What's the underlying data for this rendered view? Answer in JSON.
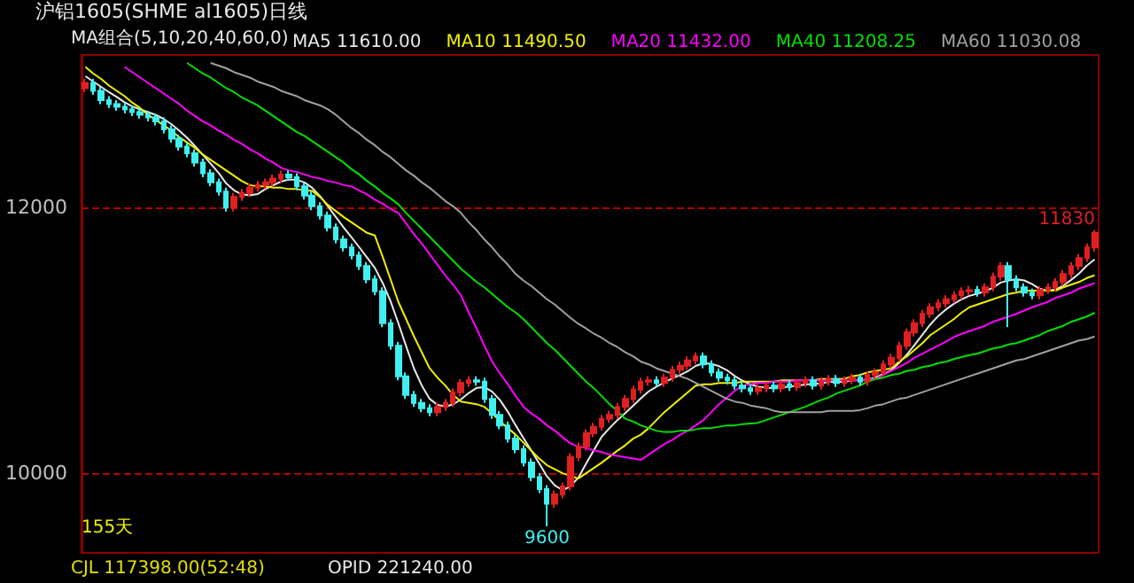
{
  "chart_data": {
    "type": "candlestick",
    "title": "沪铝1605(SHME al1605)日线",
    "annotations": [
      "MA组合(5,10,20,40,60,0)",
      "11830",
      {
        "text": "9600",
        "y": 9600
      },
      "155天",
      "CJL 117398.00(52:48)",
      "OPID 221240.00"
    ],
    "categories": [
      null,
      null,
      null,
      null,
      null,
      null,
      null,
      null,
      null,
      null,
      null,
      null,
      null,
      null,
      null,
      null,
      null,
      null,
      null,
      null,
      null,
      null,
      null,
      null,
      null,
      null,
      null,
      null,
      null,
      null,
      null,
      null,
      null,
      null,
      null,
      null,
      null,
      null,
      null,
      null,
      null,
      null,
      null,
      null,
      null,
      null,
      null,
      null,
      null,
      null,
      null,
      null,
      null,
      null,
      null,
      null,
      null,
      null,
      null,
      null,
      null,
      null,
      null,
      null,
      null,
      null,
      null,
      null,
      null,
      null,
      null,
      null,
      null,
      null,
      null,
      null,
      null,
      null,
      null,
      null,
      null,
      null,
      null,
      null,
      null,
      null,
      null,
      null,
      null,
      null,
      null,
      null,
      null,
      null,
      null,
      null,
      null,
      null,
      null,
      null,
      null,
      null,
      null,
      null,
      null,
      null,
      null,
      null,
      null,
      null,
      null,
      null,
      null,
      null,
      null,
      null,
      null,
      null,
      null,
      null,
      null,
      null,
      null,
      null,
      null,
      null,
      null,
      null,
      null,
      null
    ],
    "ohlc": [
      [
        12900,
        12970,
        12870,
        12940
      ],
      [
        12940,
        12970,
        12850,
        12880
      ],
      [
        12880,
        12910,
        12780,
        12810
      ],
      [
        12810,
        12840,
        12750,
        12780
      ],
      [
        12780,
        12810,
        12730,
        12760
      ],
      [
        12760,
        12790,
        12710,
        12740
      ],
      [
        12740,
        12770,
        12690,
        12720
      ],
      [
        12720,
        12750,
        12670,
        12700
      ],
      [
        12700,
        12730,
        12650,
        12680
      ],
      [
        12680,
        12710,
        12620,
        12650
      ],
      [
        12650,
        12680,
        12560,
        12590
      ],
      [
        12590,
        12620,
        12490,
        12520
      ],
      [
        12520,
        12550,
        12430,
        12460
      ],
      [
        12460,
        12490,
        12380,
        12410
      ],
      [
        12410,
        12440,
        12310,
        12340
      ],
      [
        12340,
        12370,
        12230,
        12260
      ],
      [
        12260,
        12290,
        12160,
        12190
      ],
      [
        12190,
        12220,
        12090,
        12120
      ],
      [
        12120,
        12150,
        11970,
        12000
      ],
      [
        12000,
        12110,
        11970,
        12080
      ],
      [
        12080,
        12140,
        12050,
        12110
      ],
      [
        12110,
        12180,
        12080,
        12150
      ],
      [
        12150,
        12200,
        12120,
        12170
      ],
      [
        12170,
        12220,
        12140,
        12190
      ],
      [
        12190,
        12250,
        12160,
        12220
      ],
      [
        12220,
        12280,
        12190,
        12250
      ],
      [
        12250,
        12280,
        12200,
        12230
      ],
      [
        12230,
        12260,
        12130,
        12160
      ],
      [
        12160,
        12190,
        12060,
        12090
      ],
      [
        12090,
        12120,
        11980,
        12010
      ],
      [
        12010,
        12040,
        11910,
        11940
      ],
      [
        11940,
        11970,
        11820,
        11850
      ],
      [
        11850,
        11880,
        11730,
        11760
      ],
      [
        11760,
        11790,
        11670,
        11700
      ],
      [
        11700,
        11730,
        11610,
        11640
      ],
      [
        11640,
        11670,
        11530,
        11560
      ],
      [
        11560,
        11590,
        11430,
        11460
      ],
      [
        11460,
        11490,
        11340,
        11370
      ],
      [
        11370,
        11400,
        11100,
        11130
      ],
      [
        11130,
        11160,
        10930,
        10960
      ],
      [
        10960,
        10990,
        10700,
        10730
      ],
      [
        10730,
        10760,
        10560,
        10590
      ],
      [
        10590,
        10620,
        10500,
        10530
      ],
      [
        10530,
        10560,
        10460,
        10490
      ],
      [
        10490,
        10520,
        10430,
        10460
      ],
      [
        10460,
        10530,
        10430,
        10500
      ],
      [
        10500,
        10560,
        10470,
        10530
      ],
      [
        10530,
        10640,
        10500,
        10610
      ],
      [
        10610,
        10710,
        10580,
        10680
      ],
      [
        10680,
        10730,
        10650,
        10700
      ],
      [
        10700,
        10730,
        10660,
        10690
      ],
      [
        10690,
        10720,
        10530,
        10560
      ],
      [
        10560,
        10590,
        10410,
        10440
      ],
      [
        10440,
        10470,
        10330,
        10360
      ],
      [
        10360,
        10390,
        10230,
        10260
      ],
      [
        10260,
        10290,
        10150,
        10180
      ],
      [
        10180,
        10210,
        10050,
        10080
      ],
      [
        10080,
        10110,
        9940,
        9970
      ],
      [
        9970,
        10000,
        9850,
        9880
      ],
      [
        9880,
        9910,
        9600,
        9770
      ],
      [
        9770,
        9870,
        9740,
        9840
      ],
      [
        9840,
        9930,
        9810,
        9900
      ],
      [
        9900,
        10150,
        9870,
        10120
      ],
      [
        10120,
        10230,
        10090,
        10200
      ],
      [
        10200,
        10330,
        10170,
        10300
      ],
      [
        10300,
        10380,
        10270,
        10350
      ],
      [
        10350,
        10440,
        10320,
        10410
      ],
      [
        10410,
        10470,
        10380,
        10440
      ],
      [
        10440,
        10530,
        10410,
        10500
      ],
      [
        10500,
        10590,
        10470,
        10560
      ],
      [
        10560,
        10660,
        10530,
        10630
      ],
      [
        10630,
        10720,
        10600,
        10690
      ],
      [
        10690,
        10730,
        10660,
        10700
      ],
      [
        10700,
        10730,
        10650,
        10680
      ],
      [
        10680,
        10750,
        10650,
        10720
      ],
      [
        10720,
        10810,
        10690,
        10780
      ],
      [
        10780,
        10840,
        10750,
        10810
      ],
      [
        10810,
        10880,
        10780,
        10850
      ],
      [
        10850,
        10910,
        10820,
        10880
      ],
      [
        10880,
        10910,
        10790,
        10820
      ],
      [
        10820,
        10850,
        10730,
        10760
      ],
      [
        10760,
        10790,
        10690,
        10720
      ],
      [
        10720,
        10750,
        10670,
        10700
      ],
      [
        10700,
        10730,
        10630,
        10660
      ],
      [
        10660,
        10690,
        10610,
        10640
      ],
      [
        10640,
        10670,
        10590,
        10620
      ],
      [
        10620,
        10670,
        10590,
        10640
      ],
      [
        10640,
        10690,
        10610,
        10660
      ],
      [
        10660,
        10690,
        10610,
        10640
      ],
      [
        10640,
        10700,
        10610,
        10670
      ],
      [
        10670,
        10700,
        10620,
        10650
      ],
      [
        10650,
        10710,
        10620,
        10680
      ],
      [
        10680,
        10730,
        10650,
        10700
      ],
      [
        10700,
        10730,
        10630,
        10660
      ],
      [
        10660,
        10720,
        10630,
        10690
      ],
      [
        10690,
        10740,
        10660,
        10710
      ],
      [
        10710,
        10740,
        10650,
        10680
      ],
      [
        10680,
        10730,
        10650,
        10700
      ],
      [
        10700,
        10750,
        10670,
        10720
      ],
      [
        10720,
        10750,
        10660,
        10690
      ],
      [
        10690,
        10770,
        10660,
        10740
      ],
      [
        10740,
        10790,
        10710,
        10760
      ],
      [
        10760,
        10850,
        10730,
        10820
      ],
      [
        10820,
        10900,
        10790,
        10870
      ],
      [
        10870,
        10990,
        10840,
        10960
      ],
      [
        10960,
        11090,
        10930,
        11060
      ],
      [
        11060,
        11160,
        11030,
        11130
      ],
      [
        11130,
        11230,
        11100,
        11200
      ],
      [
        11200,
        11280,
        11170,
        11250
      ],
      [
        11250,
        11310,
        11220,
        11280
      ],
      [
        11280,
        11340,
        11250,
        11310
      ],
      [
        11310,
        11370,
        11280,
        11340
      ],
      [
        11340,
        11400,
        11310,
        11370
      ],
      [
        11370,
        11410,
        11340,
        11380
      ],
      [
        11380,
        11410,
        11330,
        11360
      ],
      [
        11360,
        11430,
        11330,
        11400
      ],
      [
        11400,
        11510,
        11370,
        11480
      ],
      [
        11480,
        11590,
        11450,
        11560
      ],
      [
        11560,
        11590,
        11100,
        11460
      ],
      [
        11460,
        11490,
        11370,
        11400
      ],
      [
        11400,
        11430,
        11330,
        11360
      ],
      [
        11360,
        11390,
        11310,
        11340
      ],
      [
        11340,
        11410,
        11310,
        11380
      ],
      [
        11380,
        11430,
        11350,
        11400
      ],
      [
        11400,
        11470,
        11370,
        11440
      ],
      [
        11440,
        11530,
        11410,
        11500
      ],
      [
        11500,
        11590,
        11470,
        11560
      ],
      [
        11560,
        11650,
        11530,
        11620
      ],
      [
        11620,
        11730,
        11590,
        11700
      ],
      [
        11700,
        11830,
        11670,
        11810
      ]
    ],
    "colors": [
      "#e02020",
      "#40f0f0",
      "#40f0f0",
      "#40f0f0",
      "#40f0f0",
      "#40f0f0",
      "#40f0f0",
      "#40f0f0",
      "#40f0f0",
      "#40f0f0",
      "#40f0f0",
      "#40f0f0",
      "#40f0f0",
      "#40f0f0",
      "#40f0f0",
      "#40f0f0",
      "#40f0f0",
      "#40f0f0",
      "#40f0f0",
      "#e02020",
      "#e02020",
      "#e02020",
      "#e02020",
      "#e02020",
      "#e02020",
      "#e02020",
      "#40f0f0",
      "#40f0f0",
      "#40f0f0",
      "#40f0f0",
      "#40f0f0",
      "#40f0f0",
      "#40f0f0",
      "#40f0f0",
      "#40f0f0",
      "#40f0f0",
      "#40f0f0",
      "#40f0f0",
      "#40f0f0",
      "#40f0f0",
      "#40f0f0",
      "#40f0f0",
      "#40f0f0",
      "#40f0f0",
      "#40f0f0",
      "#e02020",
      "#e02020",
      "#e02020",
      "#e02020",
      "#e02020",
      "#40f0f0",
      "#40f0f0",
      "#40f0f0",
      "#40f0f0",
      "#40f0f0",
      "#40f0f0",
      "#40f0f0",
      "#40f0f0",
      "#40f0f0",
      "#40f0f0",
      "#e02020",
      "#e02020",
      "#e02020",
      "#e02020",
      "#e02020",
      "#e02020",
      "#e02020",
      "#e02020",
      "#e02020",
      "#e02020",
      "#e02020",
      "#e02020",
      "#e02020",
      "#40f0f0",
      "#e02020",
      "#e02020",
      "#e02020",
      "#e02020",
      "#e02020",
      "#40f0f0",
      "#40f0f0",
      "#40f0f0",
      "#40f0f0",
      "#40f0f0",
      "#40f0f0",
      "#40f0f0",
      "#e02020",
      "#e02020",
      "#40f0f0",
      "#e02020",
      "#40f0f0",
      "#e02020",
      "#e02020",
      "#40f0f0",
      "#e02020",
      "#e02020",
      "#40f0f0",
      "#e02020",
      "#e02020",
      "#40f0f0",
      "#e02020",
      "#e02020",
      "#e02020",
      "#e02020",
      "#e02020",
      "#e02020",
      "#e02020",
      "#e02020",
      "#e02020",
      "#e02020",
      "#e02020",
      "#e02020",
      "#e02020",
      "#e02020",
      "#40f0f0",
      "#e02020",
      "#e02020",
      "#e02020",
      "#40f0f0",
      "#40f0f0",
      "#40f0f0",
      "#40f0f0",
      "#e02020",
      "#e02020",
      "#e02020",
      "#e02020",
      "#e02020",
      "#e02020",
      "#e02020",
      "#e02020"
    ],
    "series": [
      {
        "name": "MA5 11610.00",
        "type": "line",
        "color": "#e8e8e8",
        "values": [
          12990,
          12950,
          12910,
          12870,
          12834,
          12794,
          12762,
          12740,
          12720,
          12698,
          12668,
          12628,
          12580,
          12526,
          12464,
          12398,
          12332,
          12264,
          12182,
          12130,
          12100,
          12092,
          12102,
          12140,
          12168,
          12196,
          12212,
          12210,
          12190,
          12148,
          12086,
          12010,
          11930,
          11852,
          11778,
          11702,
          11624,
          11546,
          11432,
          11296,
          11130,
          10956,
          10788,
          10660,
          10560,
          10514,
          10502,
          10518,
          10556,
          10604,
          10642,
          10648,
          10614,
          10550,
          10462,
          10360,
          10264,
          10170,
          10074,
          9976,
          9908,
          9872,
          9902,
          9966,
          10072,
          10174,
          10276,
          10340,
          10400,
          10452,
          10508,
          10564,
          10616,
          10652,
          10684,
          10714,
          10738,
          10768,
          10808,
          10828,
          10824,
          10806,
          10776,
          10732,
          10696,
          10668,
          10652,
          10644,
          10640,
          10646,
          10652,
          10660,
          10668,
          10672,
          10676,
          10688,
          10688,
          10688,
          10700,
          10700,
          10706,
          10722,
          10746,
          10776,
          10830,
          10894,
          10968,
          11044,
          11120,
          11184,
          11234,
          11276,
          11310,
          11336,
          11352,
          11370,
          11398,
          11436,
          11452,
          11460,
          11452,
          11424,
          11388,
          11376,
          11384,
          11412,
          11456,
          11504,
          11564,
          11610
        ]
      },
      {
        "name": "MA10 11490.50",
        "type": "line",
        "color": "#f0f000",
        "values": [
          13060,
          13010,
          12970,
          12920,
          12880,
          12840,
          12790,
          12750,
          12700,
          12660,
          12620,
          12580,
          12530,
          12490,
          12450,
          12400,
          12360,
          12320,
          12280,
          12240,
          12200,
          12170,
          12160,
          12160,
          12150,
          12150,
          12140,
          12140,
          12130,
          12125,
          12080,
          12020,
          11975,
          11930,
          11890,
          11850,
          11810,
          11790,
          11630,
          11460,
          11290,
          11160,
          11030,
          10910,
          10790,
          10720,
          10660,
          10590,
          10540,
          10530,
          10520,
          10500,
          10450,
          10390,
          10340,
          10290,
          10230,
          10170,
          10110,
          10060,
          10030,
          10000,
          9980,
          9960,
          10000,
          10040,
          10080,
          10125,
          10170,
          10210,
          10260,
          10290,
          10340,
          10400,
          10460,
          10510,
          10560,
          10610,
          10660,
          10670,
          10670,
          10680,
          10680,
          10680,
          10690,
          10690,
          10690,
          10690,
          10690,
          10700,
          10700,
          10700,
          10700,
          10700,
          10710,
          10710,
          10710,
          10710,
          10730,
          10740,
          10760,
          10770,
          10780,
          10790,
          10840,
          10880,
          10930,
          10980,
          11040,
          11080,
          11120,
          11160,
          11210,
          11250,
          11270,
          11290,
          11310,
          11330,
          11350,
          11360,
          11375,
          11375,
          11375,
          11375,
          11375,
          11400,
          11420,
          11440,
          11470,
          11490.5
        ]
      },
      {
        "name": "MA20 11432.00",
        "type": "line",
        "color": "#ff00ff",
        "values": [
          null,
          null,
          null,
          null,
          null,
          13060,
          13020,
          12980,
          12940,
          12900,
          12860,
          12820,
          12780,
          12730,
          12690,
          12650,
          12620,
          12580,
          12550,
          12510,
          12480,
          12440,
          12410,
          12370,
          12340,
          12300,
          12280,
          12270,
          12250,
          12230,
          12220,
          12200,
          12190,
          12170,
          12160,
          12130,
          12100,
          12060,
          12030,
          11990,
          11960,
          11880,
          11800,
          11730,
          11650,
          11570,
          11490,
          11420,
          11340,
          11210,
          11090,
          10960,
          10840,
          10750,
          10670,
          10580,
          10500,
          10450,
          10410,
          10360,
          10320,
          10270,
          10225,
          10200,
          10190,
          10170,
          10160,
          10140,
          10130,
          10120,
          10110,
          10100,
          10140,
          10180,
          10220,
          10250,
          10290,
          10320,
          10360,
          10400,
          10460,
          10520,
          10570,
          10620,
          10660,
          10670,
          10680,
          10680,
          10690,
          10690,
          10690,
          10700,
          10700,
          10700,
          10700,
          10700,
          10700,
          10700,
          10700,
          10700,
          10710,
          10710,
          10740,
          10770,
          10800,
          10830,
          10870,
          10900,
          10930,
          10960,
          10990,
          11025,
          11050,
          11070,
          11090,
          11110,
          11140,
          11160,
          11180,
          11200,
          11225,
          11250,
          11270,
          11290,
          11320,
          11340,
          11360,
          11390,
          11410,
          11432
        ]
      },
      {
        "name": "MA40 11208.25",
        "type": "line",
        "color": "#00e000",
        "values": [
          null,
          null,
          null,
          null,
          null,
          null,
          null,
          null,
          null,
          null,
          null,
          null,
          null,
          13090,
          13050,
          13010,
          12980,
          12940,
          12900,
          12870,
          12830,
          12800,
          12770,
          12730,
          12690,
          12650,
          12610,
          12570,
          12540,
          12500,
          12460,
          12420,
          12380,
          12340,
          12290,
          12250,
          12200,
          12160,
          12110,
          12070,
          12025,
          11960,
          11900,
          11840,
          11780,
          11720,
          11660,
          11600,
          11540,
          11490,
          11440,
          11400,
          11350,
          11300,
          11250,
          11210,
          11160,
          11100,
          11040,
          10980,
          10930,
          10870,
          10810,
          10750,
          10690,
          10640,
          10580,
          10520,
          10470,
          10410,
          10390,
          10360,
          10340,
          10320,
          10310,
          10310,
          10320,
          10320,
          10330,
          10340,
          10340,
          10350,
          10360,
          10360,
          10370,
          10375,
          10380,
          10400,
          10420,
          10440,
          10460,
          10480,
          10500,
          10525,
          10550,
          10570,
          10600,
          10620,
          10640,
          10660,
          10690,
          10710,
          10720,
          10740,
          10750,
          10770,
          10780,
          10800,
          10810,
          10830,
          10840,
          10860,
          10875,
          10890,
          10900,
          10920,
          10940,
          10950,
          10970,
          10980,
          11000,
          11020,
          11040,
          11070,
          11090,
          11110,
          11140,
          11160,
          11180,
          11208.25
        ]
      },
      {
        "name": "MA60 11030.08",
        "type": "line",
        "color": "#a0a0a0",
        "values": [
          null,
          null,
          null,
          null,
          null,
          null,
          null,
          null,
          null,
          null,
          null,
          null,
          null,
          null,
          null,
          null,
          13090,
          13070,
          13050,
          13020,
          13000,
          12980,
          12950,
          12930,
          12910,
          12880,
          12860,
          12840,
          12810,
          12790,
          12770,
          12740,
          12700,
          12650,
          12600,
          12560,
          12510,
          12470,
          12420,
          12380,
          12330,
          12280,
          12240,
          12190,
          12150,
          12100,
          12050,
          12010,
          11960,
          11890,
          11830,
          11760,
          11700,
          11630,
          11570,
          11500,
          11450,
          11410,
          11360,
          11310,
          11270,
          11220,
          11170,
          11125,
          11090,
          11050,
          11020,
          10980,
          10950,
          10910,
          10880,
          10840,
          10820,
          10790,
          10770,
          10750,
          10730,
          10710,
          10680,
          10650,
          10620,
          10590,
          10560,
          10540,
          10530,
          10510,
          10500,
          10490,
          10470,
          10460,
          10460,
          10460,
          10460,
          10460,
          10460,
          10470,
          10470,
          10470,
          10470,
          10475,
          10490,
          10510,
          10520,
          10540,
          10560,
          10570,
          10590,
          10610,
          10630,
          10650,
          10670,
          10690,
          10710,
          10730,
          10750,
          10770,
          10790,
          10810,
          10830,
          10850,
          10860,
          10880,
          10900,
          10920,
          10940,
          10960,
          10980,
          11000,
          11010,
          11030.08
        ]
      }
    ],
    "ylim": [
      9400,
      13150
    ],
    "yticks": [
      10000,
      12000
    ],
    "grid": "y",
    "legend": "top",
    "marker": "none"
  }
}
